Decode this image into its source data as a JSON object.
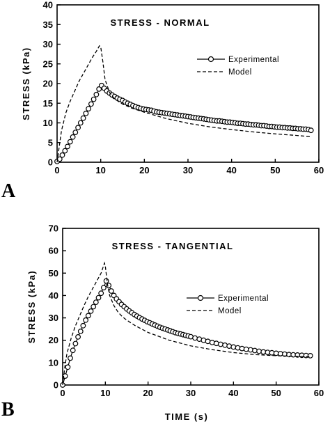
{
  "chart_data": [
    {
      "panel_label": "A",
      "type": "line",
      "title": "STRESS - NORMAL",
      "xlabel": "",
      "ylabel": "STRESS (kPa)",
      "xlim": [
        0,
        60
      ],
      "ylim": [
        0,
        40
      ],
      "xticks": [
        0,
        10,
        20,
        30,
        40,
        50,
        60
      ],
      "yticks": [
        0,
        5,
        10,
        15,
        20,
        25,
        30,
        35,
        40
      ],
      "legend_position": "right",
      "series": [
        {
          "name": "Experimental",
          "style": "line-with-circles",
          "x": [
            0,
            0.6,
            1.2,
            1.8,
            2.4,
            3.0,
            3.6,
            4.2,
            4.8,
            5.4,
            6.0,
            6.6,
            7.2,
            7.8,
            8.4,
            9.0,
            9.6,
            10.2,
            10.8,
            11.4,
            12.0,
            12.6,
            13.2,
            13.8,
            14.4,
            15.0,
            15.6,
            16.2,
            16.8,
            17.4,
            18.0,
            18.6,
            19.2,
            19.8,
            20.4,
            21.0,
            21.6,
            22.2,
            22.8,
            23.4,
            24.0,
            24.6,
            25.2,
            25.8,
            26.4,
            27.0,
            27.6,
            28.2,
            28.8,
            29.4,
            30.0,
            30.6,
            31.2,
            31.8,
            32.4,
            33.0,
            33.6,
            34.2,
            34.8,
            35.4,
            36.0,
            36.6,
            37.2,
            37.8,
            38.4,
            39.0,
            39.6,
            40.2,
            40.8,
            41.4,
            42.0,
            42.6,
            43.2,
            43.8,
            44.4,
            45.0,
            45.6,
            46.2,
            46.8,
            47.4,
            48.0,
            48.6,
            49.2,
            49.8,
            50.4,
            51.0,
            51.6,
            52.2,
            52.8,
            53.4,
            54.0,
            54.6,
            55.2,
            55.8,
            56.4,
            57.0,
            57.6,
            58.2
          ],
          "y": [
            0.2,
            0.8,
            1.8,
            2.9,
            4.0,
            5.2,
            6.4,
            7.6,
            8.8,
            10.0,
            11.2,
            12.4,
            13.6,
            14.8,
            16.0,
            17.2,
            18.6,
            19.5,
            18.8,
            18.1,
            17.6,
            17.1,
            16.7,
            16.3,
            16.0,
            15.7,
            15.3,
            15.0,
            14.7,
            14.4,
            14.1,
            13.9,
            13.7,
            13.5,
            13.4,
            13.3,
            13.2,
            13.0,
            12.8,
            12.7,
            12.6,
            12.5,
            12.4,
            12.3,
            12.2,
            12.1,
            12.0,
            11.9,
            11.8,
            11.7,
            11.6,
            11.5,
            11.4,
            11.3,
            11.2,
            11.1,
            11.0,
            10.9,
            10.8,
            10.7,
            10.6,
            10.5,
            10.5,
            10.4,
            10.3,
            10.2,
            10.2,
            10.1,
            10.0,
            9.9,
            9.9,
            9.8,
            9.7,
            9.7,
            9.6,
            9.5,
            9.5,
            9.4,
            9.3,
            9.3,
            9.2,
            9.1,
            9.1,
            9.0,
            8.9,
            8.9,
            8.8,
            8.8,
            8.7,
            8.7,
            8.6,
            8.6,
            8.5,
            8.5,
            8.4,
            8.4,
            8.3,
            8.1
          ]
        },
        {
          "name": "Model",
          "style": "dashed",
          "x": [
            0,
            0.5,
            1,
            2,
            3,
            4,
            5,
            6,
            7,
            8,
            9,
            9.7,
            10,
            10.5,
            11,
            12,
            13,
            14,
            15,
            17,
            20,
            25,
            30,
            35,
            40,
            45,
            50,
            55,
            58
          ],
          "y": [
            0,
            4,
            8,
            12.5,
            15.5,
            18,
            20.5,
            22.5,
            24.5,
            26.5,
            28.2,
            29.6,
            29.3,
            25.5,
            21,
            17.8,
            16.3,
            15.5,
            14.8,
            13.8,
            12.7,
            11.1,
            9.9,
            9.0,
            8.3,
            7.7,
            7.2,
            6.8,
            6.5
          ]
        }
      ]
    },
    {
      "panel_label": "B",
      "type": "line",
      "title": "STRESS - TANGENTIAL",
      "xlabel": "TIME (s)",
      "ylabel": "STRESS (kPa)",
      "xlim": [
        0,
        60
      ],
      "ylim": [
        0,
        70
      ],
      "xticks": [
        0,
        10,
        20,
        30,
        40,
        50,
        60
      ],
      "yticks": [
        0,
        10,
        20,
        30,
        40,
        50,
        60,
        70
      ],
      "legend_position": "right",
      "series": [
        {
          "name": "Experimental",
          "style": "line-with-circles",
          "x": [
            0,
            0.6,
            1.2,
            1.8,
            2.4,
            3.0,
            3.6,
            4.2,
            4.8,
            5.4,
            6.0,
            6.6,
            7.2,
            7.8,
            8.4,
            9.0,
            9.6,
            10.2,
            10.8,
            11.4,
            12.0,
            12.6,
            13.2,
            13.8,
            14.4,
            15.0,
            15.6,
            16.2,
            16.8,
            17.4,
            18.0,
            18.6,
            19.2,
            19.8,
            20.4,
            21.0,
            21.6,
            22.2,
            22.8,
            23.4,
            24.0,
            24.6,
            25.2,
            25.8,
            26.4,
            27.0,
            27.6,
            28.2,
            28.8,
            29.4,
            30.0,
            31.0,
            32.0,
            33.0,
            34.0,
            35.0,
            36.0,
            37.0,
            38.0,
            39.0,
            40.0,
            41.0,
            42.0,
            43.0,
            44.0,
            45.0,
            46.0,
            47.0,
            48.0,
            49.0,
            50.0,
            51.0,
            52.0,
            53.0,
            54.0,
            55.0,
            56.0,
            57.0,
            58.0
          ],
          "y": [
            0,
            4,
            8,
            12,
            15.5,
            18.5,
            21.5,
            24,
            26.5,
            29,
            31,
            33,
            35,
            37,
            39,
            41,
            43.5,
            46.5,
            44.5,
            42.0,
            40.0,
            38.5,
            37.2,
            36.0,
            35.0,
            34.0,
            33.1,
            32.3,
            31.5,
            30.8,
            30.1,
            29.5,
            28.9,
            28.3,
            27.8,
            27.3,
            26.8,
            26.3,
            25.8,
            25.4,
            25.0,
            24.6,
            24.2,
            23.8,
            23.4,
            23.1,
            22.8,
            22.5,
            22.2,
            21.9,
            21.6,
            21.0,
            20.5,
            20.0,
            19.5,
            19.0,
            18.6,
            18.2,
            17.8,
            17.4,
            17.0,
            16.6,
            16.3,
            16.0,
            15.7,
            15.4,
            15.1,
            14.8,
            14.6,
            14.4,
            14.2,
            14.0,
            13.8,
            13.6,
            13.5,
            13.4,
            13.3,
            13.2,
            13.1
          ]
        },
        {
          "name": "Model",
          "style": "dashed",
          "x": [
            0,
            0.5,
            1,
            2,
            3,
            4,
            5,
            6,
            7,
            8,
            9,
            9.8,
            10,
            10.5,
            11,
            12,
            13,
            14,
            15,
            17,
            20,
            25,
            30,
            35,
            40,
            45,
            50,
            55,
            58
          ],
          "y": [
            0,
            8,
            14,
            21,
            26.5,
            31,
            35.5,
            39.5,
            43,
            46.5,
            50,
            54.5,
            53,
            45,
            40,
            35.5,
            32.5,
            30.5,
            29,
            26.5,
            23.5,
            20,
            17.5,
            15.8,
            14.5,
            13.6,
            13.1,
            12.8,
            12.7
          ]
        }
      ]
    }
  ]
}
